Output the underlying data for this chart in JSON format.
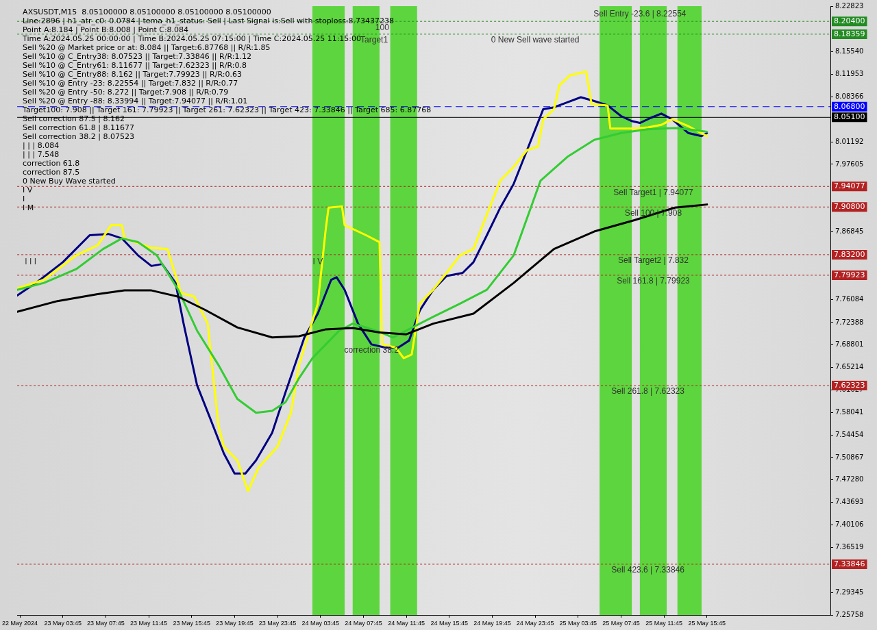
{
  "chart_data": {
    "type": "line",
    "title": "AXSUSDT,M15  8.05100000 8.05100000 8.05100000 8.05100000",
    "xlim": [
      "2024-05-22T23:30",
      "2024-05-26T03:15"
    ],
    "xticks": [
      {
        "value": "2024-05-22T23:45",
        "label": "22 May 2024"
      },
      {
        "value": "2024-05-23T03:45",
        "label": "23 May 03:45"
      },
      {
        "value": "2024-05-23T07:45",
        "label": "23 May 07:45"
      },
      {
        "value": "2024-05-23T11:45",
        "label": "23 May 11:45"
      },
      {
        "value": "2024-05-23T15:45",
        "label": "23 May 15:45"
      },
      {
        "value": "2024-05-23T19:45",
        "label": "23 May 19:45"
      },
      {
        "value": "2024-05-23T23:45",
        "label": "23 May 23:45"
      },
      {
        "value": "2024-05-24T03:45",
        "label": "24 May 03:45"
      },
      {
        "value": "2024-05-24T07:45",
        "label": "24 May 07:45"
      },
      {
        "value": "2024-05-24T11:45",
        "label": "24 May 11:45"
      },
      {
        "value": "2024-05-24T15:45",
        "label": "24 May 15:45"
      },
      {
        "value": "2024-05-24T19:45",
        "label": "24 May 19:45"
      },
      {
        "value": "2024-05-24T23:45",
        "label": "24 May 23:45"
      },
      {
        "value": "2024-05-25T03:45",
        "label": "25 May 03:45"
      },
      {
        "value": "2024-05-25T07:45",
        "label": "25 May 07:45"
      },
      {
        "value": "2024-05-25T11:45",
        "label": "25 May 11:45"
      },
      {
        "value": "2024-05-25T15:45",
        "label": "25 May 15:45"
      }
    ],
    "ylim": [
      7.25758,
      8.22823
    ],
    "yticks": [
      8.22823,
      {
        "value": 8.1554,
        "label": "8.15540"
      },
      8.11953,
      8.08366,
      8.01192,
      7.97605,
      7.86845,
      7.76084,
      7.72388,
      7.68801,
      7.65214,
      7.61627,
      7.58041,
      7.54454,
      7.50867,
      {
        "value": 7.4728,
        "label": "7.47280"
      },
      7.43693,
      7.40106,
      7.36519,
      7.29345,
      7.25758
    ],
    "marker": "none",
    "line_style": "solid",
    "series": [
      {
        "color": "#000000",
        "x": [
          "2024-05-22T23:30",
          "2024-05-23T03:15",
          "2024-05-23T07:00",
          "2024-05-23T09:30",
          "2024-05-23T12:00",
          "2024-05-23T14:30",
          "2024-05-23T17:00",
          "2024-05-23T20:00",
          "2024-05-23T23:15",
          "2024-05-24T01:45",
          "2024-05-24T04:15",
          "2024-05-24T06:45",
          "2024-05-24T09:15",
          "2024-05-24T11:45",
          "2024-05-24T14:15",
          "2024-05-24T18:00",
          "2024-05-24T21:45",
          "2024-05-25T01:30",
          "2024-05-25T05:15",
          "2024-05-25T09:00",
          "2024-05-25T12:45",
          "2024-05-25T15:45"
        ],
        "values": [
          7.741,
          7.758,
          7.769,
          7.775,
          7.775,
          7.765,
          7.744,
          7.716,
          7.7,
          7.702,
          7.713,
          7.715,
          7.708,
          7.705,
          7.722,
          7.738,
          7.787,
          7.841,
          7.869,
          7.887,
          7.907,
          7.912
        ]
      },
      {
        "color": "#33cc33",
        "x": [
          "2024-05-22T23:30",
          "2024-05-23T02:00",
          "2024-05-23T05:00",
          "2024-05-23T07:30",
          "2024-05-23T09:15",
          "2024-05-23T10:45",
          "2024-05-23T12:30",
          "2024-05-23T14:30",
          "2024-05-23T16:15",
          "2024-05-23T18:15",
          "2024-05-23T20:00",
          "2024-05-23T21:45",
          "2024-05-23T23:15",
          "2024-05-24T00:30",
          "2024-05-24T01:45",
          "2024-05-24T03:00",
          "2024-05-24T04:15",
          "2024-05-24T05:30",
          "2024-05-24T06:45",
          "2024-05-24T08:00",
          "2024-05-24T09:15",
          "2024-05-24T10:30",
          "2024-05-24T11:45",
          "2024-05-24T13:00",
          "2024-05-24T14:15",
          "2024-05-24T16:45",
          "2024-05-24T19:15",
          "2024-05-24T21:45",
          "2024-05-25T00:15",
          "2024-05-25T02:45",
          "2024-05-25T05:15",
          "2024-05-25T07:45",
          "2024-05-25T10:15",
          "2024-05-25T12:45",
          "2024-05-25T14:00",
          "2024-05-25T15:45"
        ],
        "values": [
          7.776,
          7.787,
          7.809,
          7.841,
          7.858,
          7.852,
          7.831,
          7.776,
          7.711,
          7.656,
          7.602,
          7.58,
          7.583,
          7.597,
          7.635,
          7.667,
          7.689,
          7.711,
          7.722,
          7.716,
          7.709,
          7.7,
          7.711,
          7.722,
          7.733,
          7.754,
          7.776,
          7.831,
          7.95,
          7.988,
          8.015,
          8.026,
          8.032,
          8.034,
          8.032,
          8.028
        ]
      },
      {
        "color": "#ffff00",
        "x": [
          "2024-05-22T23:30",
          "2024-05-23T02:00",
          "2024-05-23T05:00",
          "2024-05-23T07:00",
          "2024-05-23T08:15",
          "2024-05-23T09:15",
          "2024-05-23T09:30",
          "2024-05-23T12:00",
          "2024-05-23T13:30",
          "2024-05-23T14:45",
          "2024-05-23T16:00",
          "2024-05-23T17:15",
          "2024-05-23T18:15",
          "2024-05-23T18:45",
          "2024-05-23T20:00",
          "2024-05-23T21:00",
          "2024-05-23T22:00",
          "2024-05-23T23:45",
          "2024-05-24T01:00",
          "2024-05-24T01:45",
          "2024-05-24T03:30",
          "2024-05-24T04:15",
          "2024-05-24T04:30",
          "2024-05-24T05:45",
          "2024-05-24T06:00",
          "2024-05-24T08:00",
          "2024-05-24T09:15",
          "2024-05-24T09:30",
          "2024-05-24T10:45",
          "2024-05-24T11:30",
          "2024-05-24T12:15",
          "2024-05-24T13:00",
          "2024-05-24T14:15",
          "2024-05-24T15:30",
          "2024-05-24T16:45",
          "2024-05-24T18:00",
          "2024-05-24T19:15",
          "2024-05-24T20:30",
          "2024-05-24T21:45",
          "2024-05-24T23:00",
          "2024-05-25T00:00",
          "2024-05-25T00:30",
          "2024-05-25T01:30",
          "2024-05-25T02:00",
          "2024-05-25T03:00",
          "2024-05-25T04:30",
          "2024-05-25T05:00",
          "2024-05-25T06:30",
          "2024-05-25T06:45",
          "2024-05-25T09:00",
          "2024-05-25T10:15",
          "2024-05-25T11:30",
          "2024-05-25T12:30",
          "2024-05-25T14:00",
          "2024-05-25T15:45"
        ],
        "values": [
          7.778,
          7.792,
          7.831,
          7.847,
          7.879,
          7.879,
          7.858,
          7.843,
          7.841,
          7.771,
          7.765,
          7.722,
          7.559,
          7.526,
          7.504,
          7.455,
          7.493,
          7.526,
          7.58,
          7.656,
          7.754,
          7.874,
          7.907,
          7.909,
          7.879,
          7.863,
          7.852,
          7.689,
          7.684,
          7.667,
          7.673,
          7.754,
          7.776,
          7.803,
          7.831,
          7.841,
          7.896,
          7.95,
          7.972,
          7.999,
          8.004,
          8.048,
          8.064,
          8.102,
          8.118,
          8.124,
          8.072,
          8.07,
          8.033,
          8.033,
          8.035,
          8.039,
          8.048,
          8.037,
          8.021
        ]
      },
      {
        "color": "#000080",
        "x": [
          "2024-05-22T23:30",
          "2024-05-23T01:15",
          "2024-05-23T03:45",
          "2024-05-23T06:15",
          "2024-05-23T08:00",
          "2024-05-23T09:15",
          "2024-05-23T10:45",
          "2024-05-23T12:00",
          "2024-05-23T13:00",
          "2024-05-23T14:15",
          "2024-05-23T15:00",
          "2024-05-23T16:15",
          "2024-05-23T17:30",
          "2024-05-23T18:45",
          "2024-05-23T19:45",
          "2024-05-23T20:45",
          "2024-05-23T21:45",
          "2024-05-23T23:15",
          "2024-05-24T00:30",
          "2024-05-24T02:15",
          "2024-05-24T03:30",
          "2024-05-24T04:45",
          "2024-05-24T05:15",
          "2024-05-24T06:00",
          "2024-05-24T07:15",
          "2024-05-24T08:30",
          "2024-05-24T09:45",
          "2024-05-24T11:00",
          "2024-05-24T12:00",
          "2024-05-24T13:00",
          "2024-05-24T14:15",
          "2024-05-24T15:30",
          "2024-05-24T17:00",
          "2024-05-24T18:00",
          "2024-05-24T19:15",
          "2024-05-24T20:30",
          "2024-05-24T21:45",
          "2024-05-24T23:00",
          "2024-05-25T00:30",
          "2024-05-25T01:30",
          "2024-05-25T02:45",
          "2024-05-25T04:00",
          "2024-05-25T05:15",
          "2024-05-25T06:30",
          "2024-05-25T07:45",
          "2024-05-25T08:45",
          "2024-05-25T09:30",
          "2024-05-25T10:30",
          "2024-05-25T11:30",
          "2024-05-25T12:30",
          "2024-05-25T14:00",
          "2024-05-25T15:15",
          "2024-05-25T15:45"
        ],
        "values": [
          7.767,
          7.787,
          7.82,
          7.863,
          7.865,
          7.858,
          7.831,
          7.814,
          7.817,
          7.787,
          7.722,
          7.624,
          7.57,
          7.515,
          7.483,
          7.483,
          7.504,
          7.548,
          7.613,
          7.7,
          7.738,
          7.792,
          7.796,
          7.776,
          7.722,
          7.689,
          7.684,
          7.684,
          7.695,
          7.743,
          7.776,
          7.798,
          7.803,
          7.82,
          7.863,
          7.907,
          7.945,
          7.999,
          8.064,
          8.067,
          8.075,
          8.083,
          8.077,
          8.07,
          8.053,
          8.045,
          8.042,
          8.05,
          8.057,
          8.048,
          8.026,
          8.021,
          8.026
        ]
      }
    ],
    "bands": [
      {
        "axis": "x",
        "from": "2024-05-24T03:00",
        "to": "2024-05-24T06:00",
        "color": "#4fd42c"
      },
      {
        "axis": "x",
        "from": "2024-05-24T06:45",
        "to": "2024-05-24T09:15",
        "color": "#4fd42c"
      },
      {
        "axis": "x",
        "from": "2024-05-24T10:15",
        "to": "2024-05-24T12:45",
        "color": "#4fd42c"
      },
      {
        "axis": "x",
        "from": "2024-05-25T05:45",
        "to": "2024-05-25T08:45",
        "color": "#4fd42c"
      },
      {
        "axis": "x",
        "from": "2024-05-25T09:30",
        "to": "2024-05-25T12:00",
        "color": "#4fd42c"
      },
      {
        "axis": "x",
        "from": "2024-05-25T13:00",
        "to": "2024-05-25T15:15",
        "color": "#4fd42c"
      }
    ],
    "ref_lines": [
      {
        "axis": "y",
        "value": 8.204,
        "label": "8.20400",
        "color": "#228b22",
        "line_style": "dotted"
      },
      {
        "axis": "y",
        "value": 8.18359,
        "label": "8.18359",
        "color": "#228b22",
        "line_style": "dotted"
      },
      {
        "axis": "y",
        "value": 8.068,
        "label": "8.06800",
        "color": "#0000ff",
        "line_style": "dashed"
      },
      {
        "axis": "y",
        "value": 8.051,
        "label": "8.05100",
        "color": "#000000",
        "line_style": "solid"
      },
      {
        "axis": "y",
        "value": 7.94077,
        "label": "7.94077",
        "color": "#b22222",
        "line_style": "dotted"
      },
      {
        "axis": "y",
        "value": 7.908,
        "label": "7.90800",
        "color": "#b22222",
        "line_style": "dotted"
      },
      {
        "axis": "y",
        "value": 7.832,
        "label": "7.83200",
        "color": "#b22222",
        "line_style": "dotted"
      },
      {
        "axis": "y",
        "value": 7.79923,
        "label": "7.79923",
        "color": "#b22222",
        "line_style": "dotted"
      },
      {
        "axis": "y",
        "value": 7.62323,
        "label": "7.62323",
        "color": "#b22222",
        "line_style": "dotted"
      },
      {
        "axis": "y",
        "value": 7.33846,
        "label": "7.33846",
        "color": "#b22222",
        "line_style": "dotted"
      }
    ],
    "annotations": [
      "Line:2896 | h1_atr_c0: 0.0784 | tema_h1_status: Sell | Last Signal is:Sell with stoploss:8.73437238",
      "Point A:8.184 | Point B:8.008 | Point C:8.084",
      "Time A:2024.05.25 00:00:00 | Time B:2024.05.25 07:15:00 | Time C:2024.05.25 11:15:00",
      "Sell %20 @ Market price or at: 8.084 || Target:6.87768 || R/R:1.85",
      "Sell %10 @ C_Entry38: 8.07523 || Target:7.33846 || R/R:1.12",
      "Sell %10 @ C_Entry61: 8.11677 || Target:7.62323 || R/R:0.8",
      "Sell %10 @ C_Entry88: 8.162 || Target:7.79923 || R/R:0.63",
      "Sell %10 @ Entry -23: 8.22554 || Target:7.832 || R/R:0.77",
      "Sell %20 @ Entry -50: 8.272 || Target:7.908 || R/R:0.79",
      "Sell %20 @ Entry -88: 8.33994 || Target:7.94077 || R/R:1.01",
      "Target100: 7.908 || Target 161: 7.79923 || Target 261: 7.62323 || Target 423: 7.33846 || Target 685: 6.87768",
      {
        "text": "Sell Entry -23.6 | 8.22554",
        "x": "2024-05-25T09:30",
        "y": 8.22554
      },
      "Sell correction 87.5 | 8.162",
      "Sell correction 61.8 | 8.11677",
      "Sell correction 38.2 | 8.07523",
      "| | | 8.084",
      {
        "text": "0 New Sell wave started",
        "x": "2024-05-24T23:45",
        "y": 8.18359
      },
      {
        "text": "100",
        "x": "2024-05-24T09:30",
        "y": 8.204
      },
      {
        "text": "Target1",
        "x": "2024-05-24T08:45",
        "y": 8.18359
      },
      {
        "text": "correction 38.2",
        "x": "2024-05-24T08:30",
        "y": 7.689
      },
      "| | | 7.548",
      "correction 61.8",
      "correction 87.5",
      "0 New Buy Wave started",
      {
        "text": "Sell Target1 | 7.94077",
        "x": "2024-05-25T10:45",
        "y": 7.94077
      },
      {
        "text": "Sell 100 | 7.908",
        "x": "2024-05-25T10:45",
        "y": 7.908
      },
      {
        "text": "Sell Target2 | 7.832",
        "x": "2024-05-25T10:45",
        "y": 7.832
      },
      {
        "text": "Sell 161.8 | 7.79923",
        "x": "2024-05-25T10:45",
        "y": 7.79923
      },
      {
        "text": "Sell 261.8 | 7.62323",
        "x": "2024-05-25T10:15",
        "y": 7.62323
      },
      {
        "text": "Sell 423.6 | 7.33846",
        "x": "2024-05-25T10:15",
        "y": 7.33846
      },
      {
        "text": "I I I",
        "x": "2024-05-23T00:45",
        "y": 7.83
      },
      "I V",
      {
        "text": "I V",
        "x": "2024-05-24T03:30",
        "y": 7.83
      },
      "I",
      "I M"
    ]
  }
}
